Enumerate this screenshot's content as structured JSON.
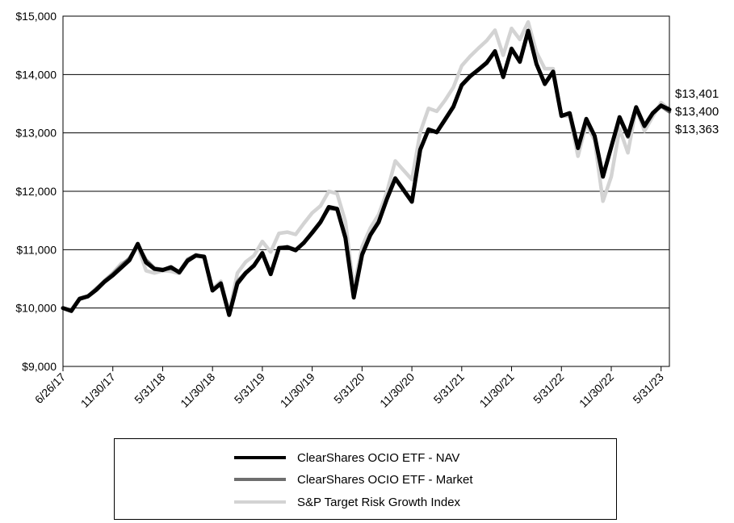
{
  "chart_data": {
    "type": "line",
    "title": "",
    "xlabel": "",
    "ylabel": "",
    "ylim": [
      9000,
      15000
    ],
    "y_ticks": [
      9000,
      10000,
      11000,
      12000,
      13000,
      14000,
      15000
    ],
    "y_tick_labels": [
      "$9,000",
      "$10,000",
      "$11,000",
      "$12,000",
      "$13,000",
      "$14,000",
      "$15,000"
    ],
    "x_tick_labels": [
      "6/26/17",
      "11/30/17",
      "5/31/18",
      "11/30/18",
      "5/31/19",
      "11/30/19",
      "5/31/20",
      "11/30/20",
      "5/31/21",
      "11/30/21",
      "5/31/22",
      "11/30/22",
      "5/31/23"
    ],
    "grid": "horizontal",
    "legend_position": "bottom",
    "x": [
      "6/26/17",
      "6/30/17",
      "7/31/17",
      "8/31/17",
      "9/30/17",
      "10/31/17",
      "11/30/17",
      "12/31/17",
      "1/31/18",
      "2/28/18",
      "3/31/18",
      "4/30/18",
      "5/31/18",
      "6/30/18",
      "7/31/18",
      "8/31/18",
      "9/30/18",
      "10/31/18",
      "11/30/18",
      "12/31/18",
      "1/31/19",
      "2/28/19",
      "3/31/19",
      "4/30/19",
      "5/31/19",
      "6/30/19",
      "7/31/19",
      "8/31/19",
      "9/30/19",
      "10/31/19",
      "11/30/19",
      "12/31/19",
      "1/31/20",
      "2/29/20",
      "3/31/20",
      "4/30/20",
      "5/31/20",
      "6/30/20",
      "7/31/20",
      "8/31/20",
      "9/30/20",
      "10/31/20",
      "11/30/20",
      "12/31/20",
      "1/31/21",
      "2/28/21",
      "3/31/21",
      "4/30/21",
      "5/31/21",
      "6/30/21",
      "7/31/21",
      "8/31/21",
      "9/30/21",
      "10/31/21",
      "11/30/21",
      "12/31/21",
      "1/31/22",
      "2/28/22",
      "3/31/22",
      "4/30/22",
      "5/31/22",
      "6/30/22",
      "7/31/22",
      "8/31/22",
      "9/30/22",
      "10/31/22",
      "11/30/22",
      "12/31/22",
      "1/31/23",
      "2/28/23",
      "3/31/23",
      "4/30/23",
      "5/31/23",
      "6/30/23"
    ],
    "series": [
      {
        "name": "ClearShares OCIO ETF - NAV",
        "color": "#000000",
        "values": [
          10000,
          9950,
          10160,
          10200,
          10310,
          10450,
          10560,
          10690,
          10820,
          11100,
          10780,
          10670,
          10650,
          10700,
          10610,
          10810,
          10900,
          10880,
          10300,
          10420,
          9880,
          10420,
          10600,
          10730,
          10940,
          10580,
          11030,
          11040,
          10990,
          11120,
          11290,
          11470,
          11730,
          11700,
          11200,
          10180,
          10910,
          11250,
          11470,
          11870,
          12220,
          12020,
          11820,
          12710,
          13060,
          13010,
          13230,
          13450,
          13820,
          13970,
          14080,
          14200,
          14400,
          13960,
          14440,
          14220,
          14750,
          14180,
          13840,
          14050,
          13290,
          13340,
          12740,
          13240,
          12950,
          12250,
          12760,
          13270,
          12950,
          13440,
          13120,
          13340,
          13470,
          13400
        ]
      },
      {
        "name": "ClearShares OCIO ETF - Market",
        "color": "#6e6e6e",
        "values": [
          10000,
          9960,
          10150,
          10200,
          10330,
          10460,
          10580,
          10720,
          10850,
          11080,
          10820,
          10680,
          10660,
          10680,
          10620,
          10830,
          10910,
          10870,
          10310,
          10430,
          9890,
          10450,
          10610,
          10720,
          10950,
          10590,
          11020,
          11050,
          11000,
          11110,
          11300,
          11480,
          11710,
          11690,
          11220,
          10200,
          10930,
          11260,
          11480,
          11880,
          12230,
          12030,
          11830,
          12720,
          13050,
          13010,
          13220,
          13440,
          13810,
          13960,
          14090,
          14210,
          14390,
          13950,
          14450,
          14210,
          14730,
          14170,
          13830,
          14040,
          13300,
          13330,
          12750,
          13220,
          12940,
          12260,
          12750,
          13250,
          12930,
          13420,
          13110,
          13330,
          13460,
          13363
        ]
      },
      {
        "name": "S&P Target Risk Growth Index",
        "color": "#d3d3d3",
        "values": [
          10000,
          9970,
          10170,
          10210,
          10320,
          10470,
          10600,
          10760,
          10830,
          11060,
          10640,
          10600,
          10640,
          10630,
          10590,
          10800,
          10900,
          10870,
          10330,
          10460,
          9920,
          10600,
          10790,
          10900,
          11140,
          10960,
          11280,
          11300,
          11260,
          11450,
          11630,
          11750,
          12000,
          11960,
          11480,
          10330,
          11050,
          11370,
          11600,
          11990,
          12520,
          12360,
          12200,
          13010,
          13420,
          13370,
          13560,
          13780,
          14150,
          14310,
          14450,
          14580,
          14760,
          14330,
          14790,
          14600,
          14900,
          14380,
          14100,
          14100,
          13290,
          13290,
          12600,
          13160,
          12870,
          11830,
          12250,
          13070,
          12660,
          13430,
          13030,
          13280,
          13520,
          13401
        ]
      }
    ],
    "end_labels": [
      "$13,401",
      "$13,400",
      "$13,363"
    ]
  }
}
